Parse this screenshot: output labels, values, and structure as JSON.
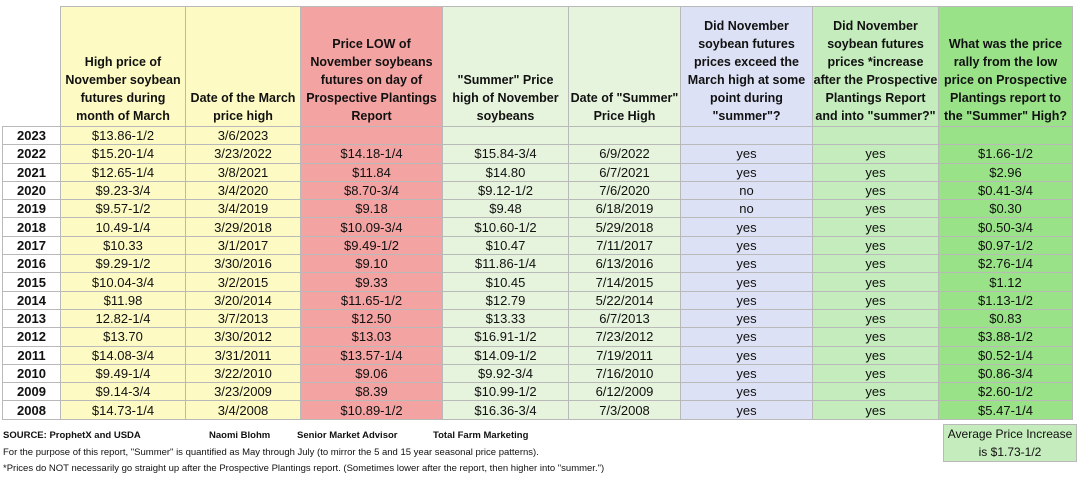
{
  "headers": [
    "",
    "High price of November soybean futures during month of March",
    "Date of the March price high",
    "Price LOW of November soybeans futures on day of Prospective Plantings Report",
    "\"Summer\" Price high of November soybeans",
    "Date of \"Summer\" Price High",
    "Did November soybean futures prices exceed the March high at some point during \"summer\"?",
    "Did November soybean futures prices *increase after the Prospective Plantings Report and into \"summer?\"",
    "What was the price rally from the low price on Prospective Plantings report to the \"Summer\" High?"
  ],
  "rows": [
    [
      "2023",
      "$13.86-1/2",
      "3/6/2023",
      "",
      "",
      "",
      "",
      "",
      ""
    ],
    [
      "2022",
      "$15.20-1/4",
      "3/23/2022",
      "$14.18-1/4",
      "$15.84-3/4",
      "6/9/2022",
      "yes",
      "yes",
      "$1.66-1/2"
    ],
    [
      "2021",
      "$12.65-1/4",
      "3/8/2021",
      "$11.84",
      "$14.80",
      "6/7/2021",
      "yes",
      "yes",
      "$2.96"
    ],
    [
      "2020",
      "$9.23-3/4",
      "3/4/2020",
      "$8.70-3/4",
      "$9.12-1/2",
      "7/6/2020",
      "no",
      "yes",
      "$0.41-3/4"
    ],
    [
      "2019",
      "$9.57-1/2",
      "3/4/2019",
      "$9.18",
      "$9.48",
      "6/18/2019",
      "no",
      "yes",
      "$0.30"
    ],
    [
      "2018",
      "10.49-1/4",
      "3/29/2018",
      "$10.09-3/4",
      "$10.60-1/2",
      "5/29/2018",
      "yes",
      "yes",
      "$0.50-3/4"
    ],
    [
      "2017",
      "$10.33",
      "3/1/2017",
      "$9.49-1/2",
      "$10.47",
      "7/11/2017",
      "yes",
      "yes",
      "$0.97-1/2"
    ],
    [
      "2016",
      "$9.29-1/2",
      "3/30/2016",
      "$9.10",
      "$11.86-1/4",
      "6/13/2016",
      "yes",
      "yes",
      "$2.76-1/4"
    ],
    [
      "2015",
      "$10.04-3/4",
      "3/2/2015",
      "$9.33",
      "$10.45",
      "7/14/2015",
      "yes",
      "yes",
      "$1.12"
    ],
    [
      "2014",
      "$11.98",
      "3/20/2014",
      "$11.65-1/2",
      "$12.79",
      "5/22/2014",
      "yes",
      "yes",
      "$1.13-1/2"
    ],
    [
      "2013",
      "12.82-1/4",
      "3/7/2013",
      "$12.50",
      "$13.33",
      "6/7/2013",
      "yes",
      "yes",
      "$0.83"
    ],
    [
      "2012",
      "$13.70",
      "3/30/2012",
      "$13.03",
      "$16.91-1/2",
      "7/23/2012",
      "yes",
      "yes",
      "$3.88-1/2"
    ],
    [
      "2011",
      "$14.08-3/4",
      "3/31/2011",
      "$13.57-1/4",
      "$14.09-1/2",
      "7/19/2011",
      "yes",
      "yes",
      "$0.52-1/4"
    ],
    [
      "2010",
      "$9.49-1/4",
      "3/22/2010",
      "$9.06",
      "$9.92-3/4",
      "7/16/2010",
      "yes",
      "yes",
      "$0.86-3/4"
    ],
    [
      "2009",
      "$9.14-3/4",
      "3/23/2009",
      "$8.39",
      "$10.99-1/2",
      "6/12/2009",
      "yes",
      "yes",
      "$2.60-1/2"
    ],
    [
      "2008",
      "$14.73-1/4",
      "3/4/2008",
      "$10.89-1/2",
      "$16.36-3/4",
      "7/3/2008",
      "yes",
      "yes",
      "$5.47-1/4"
    ]
  ],
  "footer": {
    "source": "SOURCE:  ProphetX and USDA",
    "author": "Naomi Blohm",
    "role": "Senior Market Advisor",
    "company": "Total Farm Marketing",
    "note1": "For the purpose of this report, \"Summer\" is quantified as May through July (to mirror the 5 and 15 year seasonal price patterns).",
    "note2": "*Prices do NOT necessarily go straight up after the Prospective Plantings report. (Sometimes lower after the report, then higher into \"summer.\")",
    "avg_label": "Average Price Increase",
    "avg_value": "is $1.73-1/2"
  },
  "colors": {
    "yellow": "#fdfbc3",
    "red": "#f4a3a3",
    "light_green": "#e6f3dd",
    "blue": "#dde1f5",
    "green": "#c5ecbc",
    "bright_green": "#99e288"
  }
}
